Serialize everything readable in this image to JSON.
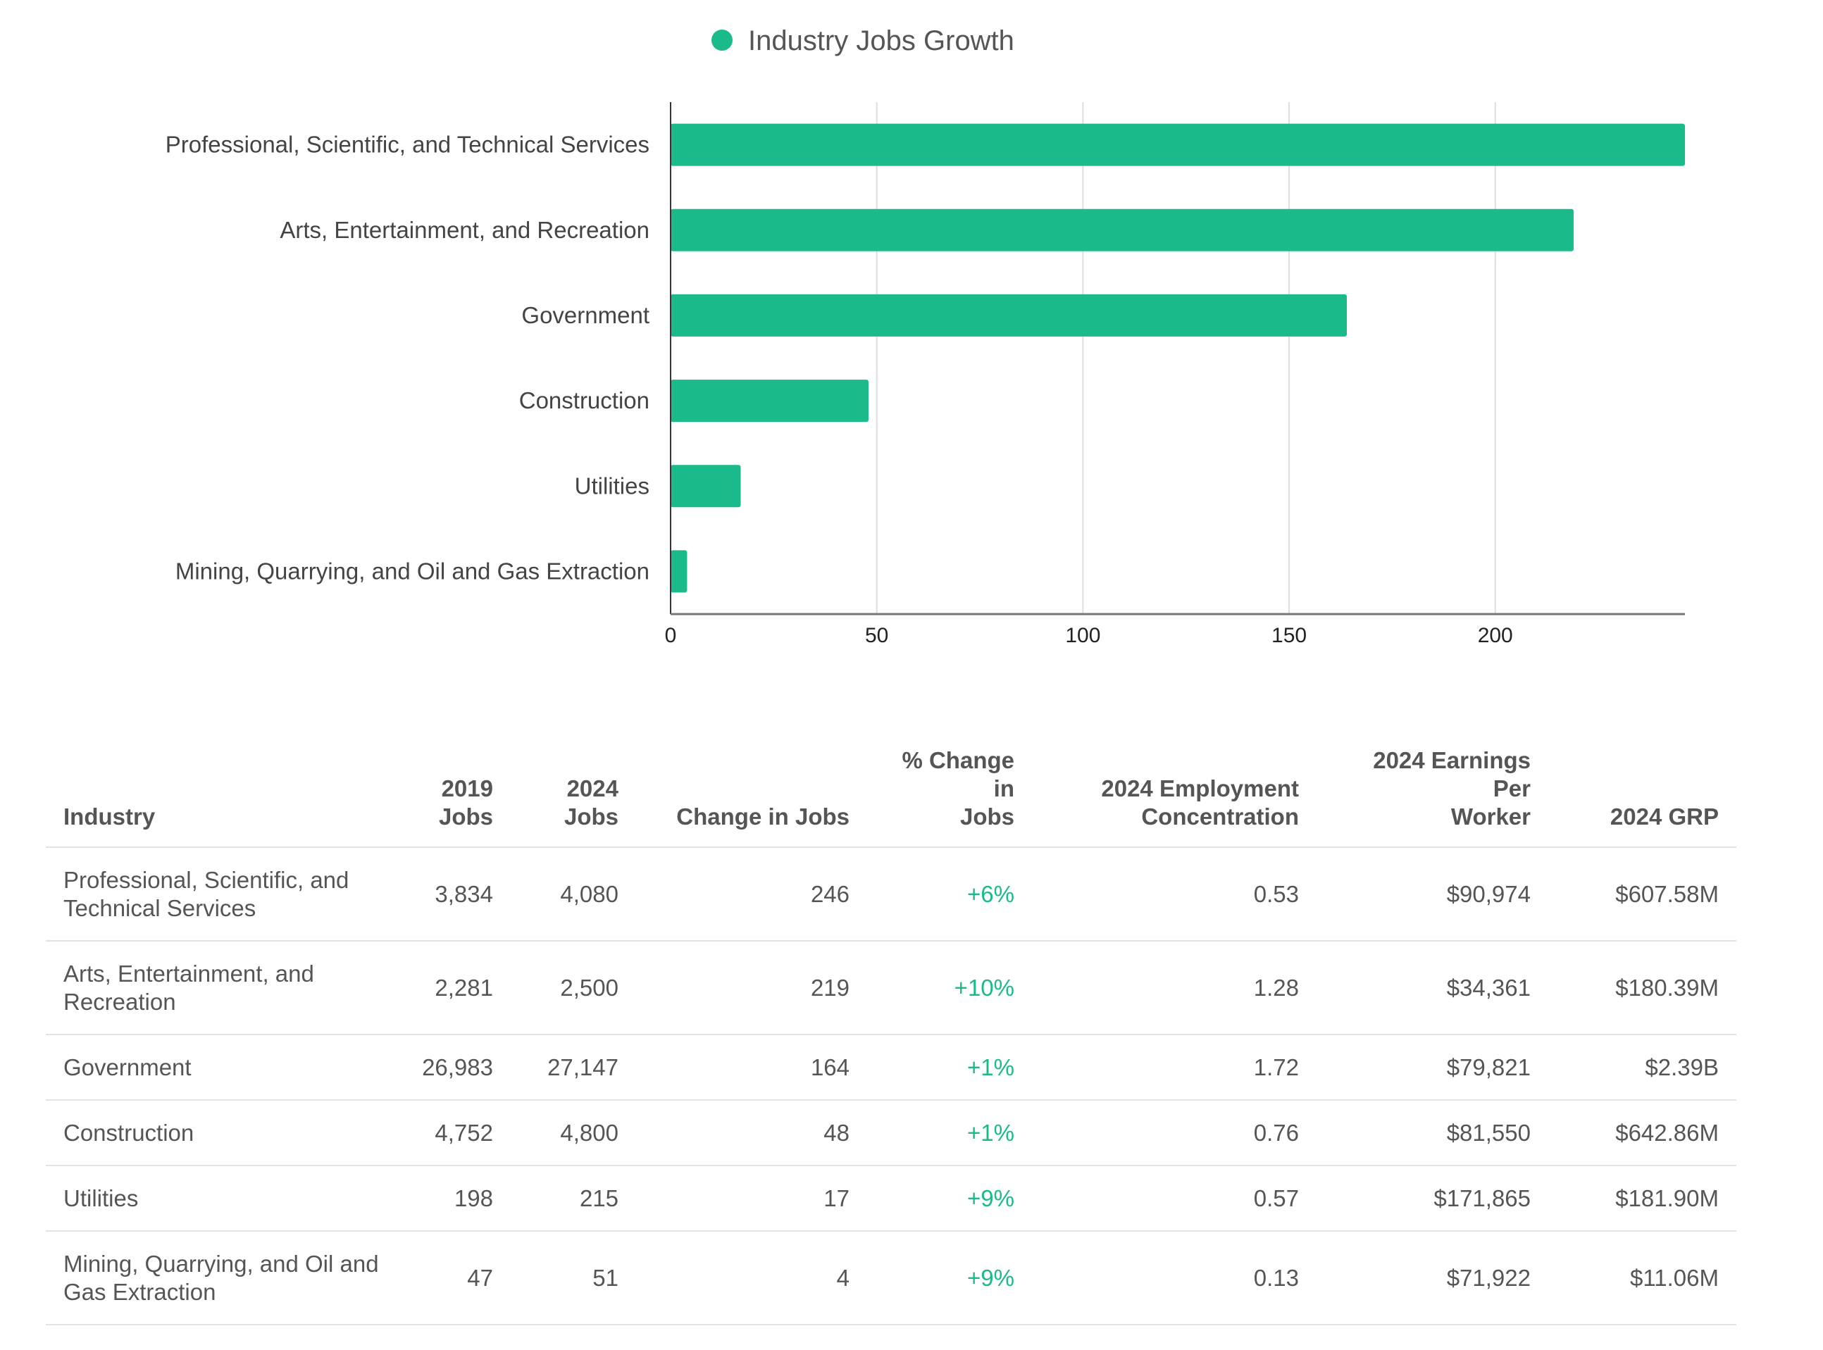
{
  "chart_data": {
    "type": "bar",
    "orientation": "horizontal",
    "legend": {
      "label": "Industry Jobs Growth",
      "position": "top-center"
    },
    "categories": [
      "Professional, Scientific, and Technical Services",
      "Arts, Entertainment, and Recreation",
      "Government",
      "Construction",
      "Utilities",
      "Mining, Quarrying, and Oil and Gas Extraction"
    ],
    "series": [
      {
        "name": "Industry Jobs Growth",
        "values": [
          246,
          219,
          164,
          48,
          17,
          4
        ],
        "color": "#1aba8a"
      }
    ],
    "xlim": [
      0,
      246
    ],
    "xticks": [
      "0",
      "50",
      "100",
      "150",
      "200"
    ],
    "xtick_values": [
      0,
      50,
      100,
      150,
      200
    ],
    "grid": "vertical"
  },
  "table": {
    "headers": [
      [
        "Industry"
      ],
      [
        "2019",
        "Jobs"
      ],
      [
        "2024",
        "Jobs"
      ],
      [
        "Change in Jobs"
      ],
      [
        "% Change in",
        "Jobs"
      ],
      [
        "2024 Employment",
        "Concentration"
      ],
      [
        "2024 Earnings Per",
        "Worker"
      ],
      [
        "2024 GRP"
      ]
    ],
    "rows": [
      {
        "industry": [
          "Professional, Scientific, and",
          "Technical Services"
        ],
        "jobs_2019": "3,834",
        "jobs_2024": "4,080",
        "change": "246",
        "pct_change": "+6%",
        "concentration": "0.53",
        "earnings": "$90,974",
        "grp": "$607.58M"
      },
      {
        "industry": [
          "Arts, Entertainment, and",
          "Recreation"
        ],
        "jobs_2019": "2,281",
        "jobs_2024": "2,500",
        "change": "219",
        "pct_change": "+10%",
        "concentration": "1.28",
        "earnings": "$34,361",
        "grp": "$180.39M"
      },
      {
        "industry": [
          "Government"
        ],
        "jobs_2019": "26,983",
        "jobs_2024": "27,147",
        "change": "164",
        "pct_change": "+1%",
        "concentration": "1.72",
        "earnings": "$79,821",
        "grp": "$2.39B"
      },
      {
        "industry": [
          "Construction"
        ],
        "jobs_2019": "4,752",
        "jobs_2024": "4,800",
        "change": "48",
        "pct_change": "+1%",
        "concentration": "0.76",
        "earnings": "$81,550",
        "grp": "$642.86M"
      },
      {
        "industry": [
          "Utilities"
        ],
        "jobs_2019": "198",
        "jobs_2024": "215",
        "change": "17",
        "pct_change": "+9%",
        "concentration": "0.57",
        "earnings": "$171,865",
        "grp": "$181.90M"
      },
      {
        "industry": [
          "Mining, Quarrying, and Oil and",
          "Gas Extraction"
        ],
        "jobs_2019": "47",
        "jobs_2024": "51",
        "change": "4",
        "pct_change": "+9%",
        "concentration": "0.13",
        "earnings": "$71,922",
        "grp": "$11.06M"
      }
    ]
  }
}
